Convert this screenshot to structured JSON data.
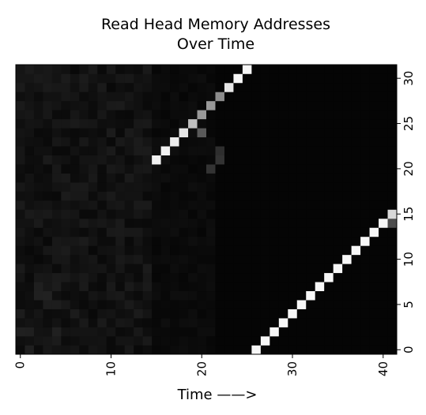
{
  "chart_data": {
    "type": "heatmap",
    "title_lines": [
      "Read Head Memory Addresses",
      "Over Time"
    ],
    "xlabel": "Time ——>",
    "ylabel": "",
    "x_range": [
      0,
      41
    ],
    "y_range": [
      0,
      31
    ],
    "x_ticks": [
      0,
      10,
      20,
      30,
      40
    ],
    "y_ticks": [
      0,
      5,
      10,
      15,
      20,
      25,
      30
    ],
    "x_tick_labels": [
      "0",
      "10",
      "20",
      "30",
      "40"
    ],
    "y_tick_labels": [
      "0",
      "5",
      "10",
      "15",
      "20",
      "25",
      "30"
    ],
    "colormap": "grayscale (black = 0, white = 1)",
    "background_level": 0.02,
    "early_noise": {
      "time_from": 0,
      "time_to": 14,
      "level": 0.08
    },
    "bright_cells": [
      {
        "t": 15,
        "addr": 21,
        "v": 0.95
      },
      {
        "t": 16,
        "addr": 22,
        "v": 0.95
      },
      {
        "t": 17,
        "addr": 23,
        "v": 0.93
      },
      {
        "t": 18,
        "addr": 24,
        "v": 0.9
      },
      {
        "t": 19,
        "addr": 25,
        "v": 0.75
      },
      {
        "t": 20,
        "addr": 26,
        "v": 0.6
      },
      {
        "t": 20,
        "addr": 24,
        "v": 0.35
      },
      {
        "t": 21,
        "addr": 27,
        "v": 0.6
      },
      {
        "t": 22,
        "addr": 28,
        "v": 0.55
      },
      {
        "t": 23,
        "addr": 29,
        "v": 0.9
      },
      {
        "t": 24,
        "addr": 30,
        "v": 0.97
      },
      {
        "t": 25,
        "addr": 31,
        "v": 0.97
      },
      {
        "t": 22,
        "addr": 21,
        "v": 0.2
      },
      {
        "t": 22,
        "addr": 22,
        "v": 0.18
      },
      {
        "t": 21,
        "addr": 20,
        "v": 0.2
      },
      {
        "t": 26,
        "addr": 0,
        "v": 0.97
      },
      {
        "t": 27,
        "addr": 1,
        "v": 0.97
      },
      {
        "t": 28,
        "addr": 2,
        "v": 0.97
      },
      {
        "t": 29,
        "addr": 3,
        "v": 0.97
      },
      {
        "t": 30,
        "addr": 4,
        "v": 0.97
      },
      {
        "t": 31,
        "addr": 5,
        "v": 0.97
      },
      {
        "t": 32,
        "addr": 6,
        "v": 0.97
      },
      {
        "t": 33,
        "addr": 7,
        "v": 0.97
      },
      {
        "t": 34,
        "addr": 8,
        "v": 0.97
      },
      {
        "t": 35,
        "addr": 9,
        "v": 0.97
      },
      {
        "t": 36,
        "addr": 10,
        "v": 0.97
      },
      {
        "t": 37,
        "addr": 11,
        "v": 0.97
      },
      {
        "t": 38,
        "addr": 12,
        "v": 0.97
      },
      {
        "t": 39,
        "addr": 13,
        "v": 0.97
      },
      {
        "t": 40,
        "addr": 14,
        "v": 0.97
      },
      {
        "t": 41,
        "addr": 15,
        "v": 0.85
      },
      {
        "t": 41,
        "addr": 14,
        "v": 0.3
      }
    ]
  }
}
